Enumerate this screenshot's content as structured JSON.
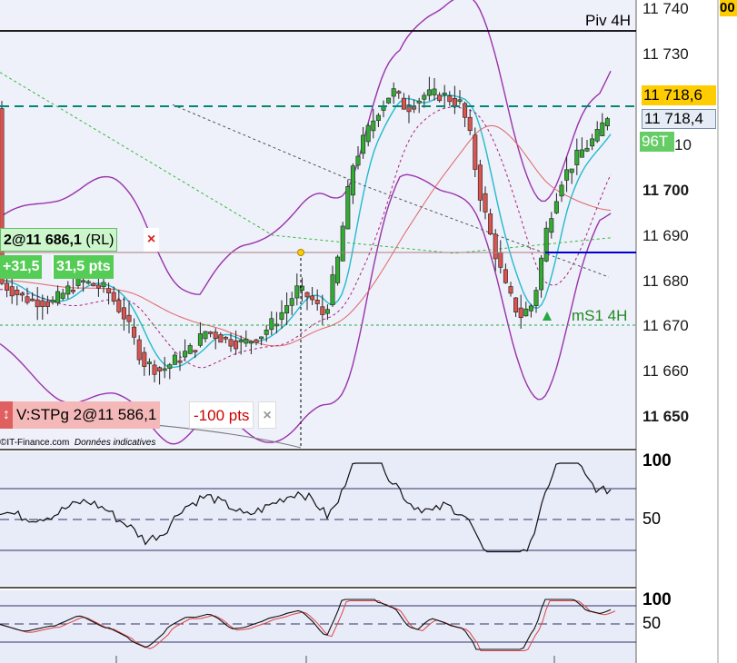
{
  "colors": {
    "price_panel_bg": "#eef0fa",
    "indicator_panel_bg": "#e8ebf8",
    "up_candle": "#33aa33",
    "down_candle": "#d9534f",
    "bollinger": "#9933aa",
    "ma_fast": "#22bbcc",
    "ma_slow_red": "#e06666",
    "pivot_line": "#000000",
    "target_line": "#008877",
    "blue_line": "#0000cc",
    "ms1_line": "#22aa44",
    "price_tag": "#ffcc00",
    "order_tag": "#f08080"
  },
  "price_axis": {
    "ticks": [
      {
        "label": "11 740",
        "bold": false
      },
      {
        "label": "11 730",
        "bold": false
      },
      {
        "label": "11 700",
        "bold": true
      },
      {
        "label": "11 690",
        "bold": false
      },
      {
        "label": "11 680",
        "bold": false
      },
      {
        "label": "11 670",
        "bold": false
      },
      {
        "label": "11 660",
        "bold": false
      },
      {
        "label": "11 650",
        "bold": true
      }
    ],
    "partial_tick": "10",
    "current_price_tag": "11 718,6",
    "second_price_tag": "11 718,4",
    "bars_tag": "96T",
    "top_right_corner": "00"
  },
  "levels": {
    "pivot_label": "Piv 4H",
    "ms1_label": "mS1 4H"
  },
  "position_order": {
    "text": "2@11 686,1",
    "suffix": "(RL)",
    "close_icon": "×",
    "pnl_value": "+31,5",
    "pnl_pts": "31,5 pts"
  },
  "stop_order": {
    "arrow_icon": "↕",
    "text": "V:STPg 2@11 586,1",
    "pts": "-100 pts",
    "close_icon": "×"
  },
  "credits": {
    "source": "©IT-Finance.com",
    "note": "Données indicatives"
  },
  "rsi_panel": {
    "label_100": "100",
    "label_50": "50"
  },
  "stoch_panel": {
    "label_100": "100",
    "label_50": "50"
  }
}
